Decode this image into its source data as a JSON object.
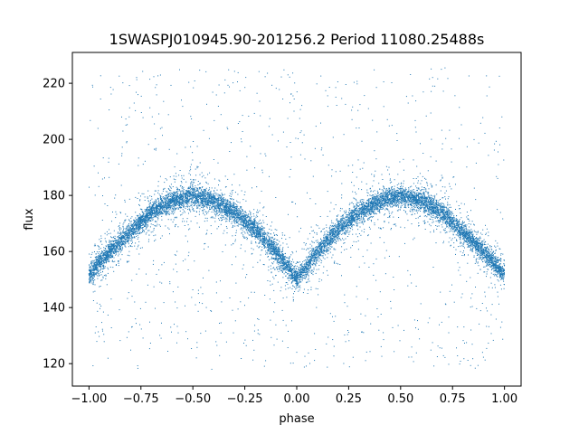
{
  "chart_data": {
    "type": "scatter",
    "title": "1SWASPJ010945.90-201256.2 Period 11080.25488s",
    "xlabel": "phase",
    "ylabel": "flux",
    "xlim": [
      -1.08,
      1.08
    ],
    "ylim": [
      112,
      231
    ],
    "x_ticks": [
      -1.0,
      -0.75,
      -0.5,
      -0.25,
      0.0,
      0.25,
      0.5,
      0.75,
      1.0
    ],
    "x_tick_labels": [
      "−1.00",
      "−0.75",
      "−0.50",
      "−0.25",
      "0.00",
      "0.25",
      "0.50",
      "0.75",
      "1.00"
    ],
    "y_ticks": [
      120,
      140,
      160,
      180,
      200,
      220
    ],
    "y_tick_labels": [
      "120",
      "140",
      "160",
      "180",
      "200",
      "220"
    ],
    "grid": false,
    "marker_color": "#1f77b4",
    "series": [
      {
        "description_points": "phase-folded light curve; dense band follows these (phase, flux) points, scatter envelope between ~118 and ~226",
        "x": [
          -1.0,
          -0.9,
          -0.8,
          -0.7,
          -0.6,
          -0.5,
          -0.4,
          -0.3,
          -0.2,
          -0.1,
          0.0,
          0.1,
          0.2,
          0.3,
          0.4,
          0.5,
          0.6,
          0.7,
          0.8,
          0.9,
          1.0
        ],
        "y": [
          152,
          160,
          167,
          174,
          178,
          180,
          178,
          174,
          168,
          160,
          150,
          160,
          168,
          174,
          178,
          180,
          178,
          174,
          167,
          160,
          152
        ]
      }
    ]
  }
}
